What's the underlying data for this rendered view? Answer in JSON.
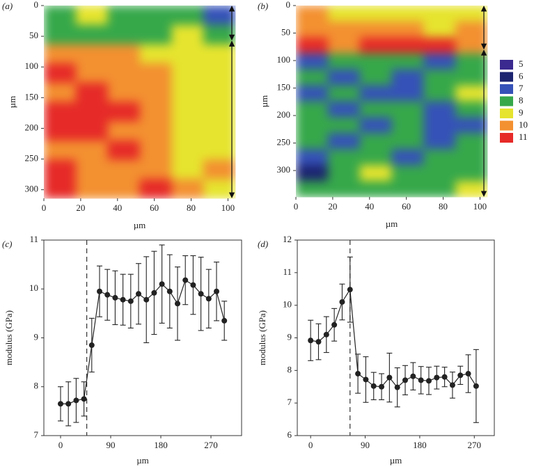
{
  "color_scale": {
    "levels": [
      5,
      6,
      7,
      8,
      9,
      10,
      11
    ],
    "colors": [
      "#3b2a8f",
      "#1c2470",
      "#3552b8",
      "#36a84a",
      "#e6e42e",
      "#f39030",
      "#e62a28"
    ]
  },
  "chart_data": [
    {
      "type": "heatmap",
      "panel_label": "(a)",
      "xlabel": "µm",
      "ylabel": "µm",
      "xlim": [
        0,
        104
      ],
      "ylim": [
        0,
        314
      ],
      "xticks": [
        0,
        20,
        40,
        60,
        80,
        100
      ],
      "yticks": [
        0,
        50,
        100,
        150,
        200,
        250,
        300
      ],
      "y_inverted": true,
      "layer_boundary": 57,
      "z": [
        [
          8,
          9,
          8,
          8,
          8,
          7
        ],
        [
          8,
          8,
          8,
          8,
          9,
          8
        ],
        [
          10,
          10,
          10,
          9,
          9,
          9
        ],
        [
          11,
          10,
          10,
          10,
          9,
          9
        ],
        [
          10,
          11,
          10,
          10,
          9,
          9
        ],
        [
          11,
          11,
          11,
          10,
          9,
          9
        ],
        [
          11,
          11,
          10,
          10,
          9,
          9
        ],
        [
          10,
          10,
          11,
          10,
          9,
          9
        ],
        [
          11,
          10,
          10,
          10,
          9,
          10
        ],
        [
          11,
          10,
          10,
          11,
          10,
          9
        ]
      ]
    },
    {
      "type": "heatmap",
      "panel_label": "(b)",
      "xlabel": "µm",
      "ylabel": "µm",
      "xlim": [
        0,
        104
      ],
      "ylim": [
        0,
        348
      ],
      "xticks": [
        0,
        20,
        40,
        60,
        80,
        100
      ],
      "yticks": [
        0,
        50,
        100,
        150,
        200,
        250,
        300
      ],
      "y_inverted": true,
      "layer_boundary": 80,
      "z": [
        [
          10,
          9,
          9,
          9,
          9,
          9
        ],
        [
          10,
          10,
          10,
          10,
          9,
          10
        ],
        [
          11,
          10,
          11,
          11,
          11,
          10
        ],
        [
          7,
          8,
          8,
          8,
          7,
          8
        ],
        [
          8,
          7,
          8,
          7,
          8,
          8
        ],
        [
          7,
          8,
          7,
          7,
          8,
          9
        ],
        [
          8,
          7,
          8,
          8,
          7,
          8
        ],
        [
          8,
          8,
          7,
          8,
          7,
          7
        ],
        [
          8,
          7,
          8,
          8,
          7,
          8
        ],
        [
          7,
          8,
          8,
          7,
          8,
          8
        ],
        [
          6,
          8,
          9,
          8,
          8,
          8
        ],
        [
          8,
          8,
          8,
          8,
          8,
          9
        ]
      ]
    },
    {
      "type": "line",
      "panel_label": "(c)",
      "xlabel": "µm",
      "ylabel": "modulus (GPa)",
      "color": "#222222",
      "xlim": [
        -30,
        325
      ],
      "ylim": [
        7,
        11
      ],
      "xticks": [
        0,
        90,
        180,
        270
      ],
      "yticks": [
        7,
        8,
        9,
        10,
        11
      ],
      "layer_boundary": 47,
      "x": [
        0,
        14,
        28,
        42,
        56,
        70,
        84,
        98,
        112,
        126,
        140,
        154,
        168,
        182,
        196,
        210,
        224,
        238,
        252,
        266,
        280,
        294
      ],
      "values": [
        7.65,
        7.65,
        7.72,
        7.75,
        8.85,
        9.95,
        9.88,
        9.82,
        9.78,
        9.75,
        9.9,
        9.78,
        9.92,
        10.1,
        9.95,
        9.7,
        10.18,
        10.08,
        9.9,
        9.8,
        9.95,
        9.35
      ],
      "errors": [
        0.35,
        0.45,
        0.45,
        0.35,
        0.55,
        0.52,
        0.52,
        0.55,
        0.52,
        0.55,
        0.62,
        0.88,
        0.85,
        0.8,
        0.75,
        0.75,
        0.5,
        0.6,
        0.75,
        0.6,
        0.6,
        0.4
      ]
    },
    {
      "type": "line",
      "panel_label": "(d)",
      "xlabel": "µm",
      "ylabel": "modulus (GPa)",
      "color": "#222222",
      "xlim": [
        -22,
        303
      ],
      "ylim": [
        6,
        12
      ],
      "xticks": [
        0,
        90,
        180,
        270
      ],
      "yticks": [
        6,
        7,
        8,
        9,
        10,
        11,
        12
      ],
      "layer_boundary": 65,
      "x": [
        0,
        13,
        26,
        39,
        52,
        65,
        78,
        91,
        104,
        117,
        130,
        143,
        156,
        169,
        182,
        195,
        208,
        221,
        234,
        247,
        260,
        273
      ],
      "values": [
        8.92,
        8.88,
        9.1,
        9.4,
        10.1,
        10.48,
        7.9,
        7.72,
        7.52,
        7.5,
        7.78,
        7.48,
        7.7,
        7.82,
        7.7,
        7.68,
        7.78,
        7.8,
        7.55,
        7.85,
        7.9,
        7.52
      ],
      "errors": [
        0.62,
        0.55,
        0.55,
        0.5,
        0.55,
        1.0,
        0.6,
        0.7,
        0.42,
        0.4,
        0.75,
        0.6,
        0.45,
        0.42,
        0.42,
        0.42,
        0.35,
        0.3,
        0.4,
        0.28,
        0.58,
        1.12
      ]
    }
  ]
}
